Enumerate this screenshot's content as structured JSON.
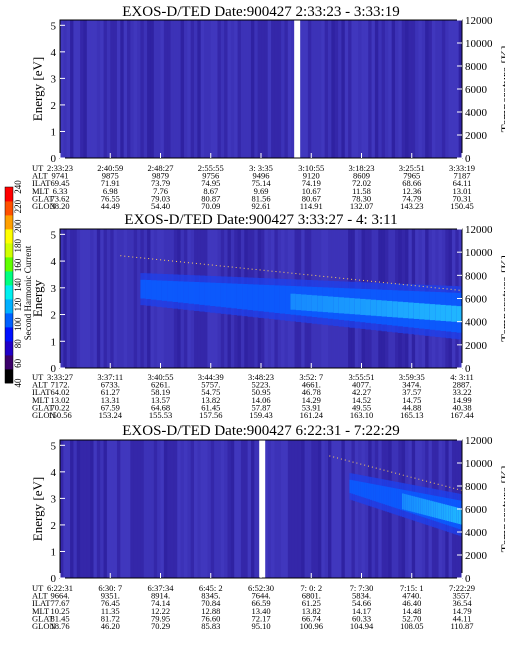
{
  "chart_data": [
    {
      "type": "heatmap",
      "title": "EXOS-D/TED   Date:900427  2:33:23 - 3:33:19",
      "ylabel": "Energy [eV]",
      "y2label": "Temperature [K]",
      "yticks": [
        "0",
        "1",
        "2",
        "3",
        "4",
        "5"
      ],
      "ylim": [
        0,
        5.2
      ],
      "y2ticks": [
        "0",
        "2000",
        "4000",
        "6000",
        "8000",
        "10000",
        "12000"
      ],
      "y2lim": [
        0,
        12000
      ],
      "gap_fraction": 0.59,
      "hot_zone": null,
      "rows": [
        {
          "label": "UT",
          "values": [
            "2:33:23",
            "2:40:59",
            "2:48:27",
            "2:55:55",
            "3: 3:35",
            "3:10:55",
            "3:18:23",
            "3:25:51",
            "3:33:19"
          ]
        },
        {
          "label": "ALT",
          "values": [
            "9741",
            "9875",
            "9879",
            "9756",
            "9496",
            "9120",
            "8609",
            "7965",
            "7187"
          ]
        },
        {
          "label": "ILAT",
          "values": [
            "69.45",
            "71.91",
            "73.79",
            "74.95",
            "75.14",
            "74.19",
            "72.02",
            "68.66",
            "64.11"
          ]
        },
        {
          "label": "MLT",
          "values": [
            "6.33",
            "6.98",
            "7.76",
            "8.67",
            "9.69",
            "10.67",
            "11.58",
            "12.36",
            "13.01"
          ]
        },
        {
          "label": "GLAT",
          "values": [
            "73.62",
            "76.55",
            "79.03",
            "80.87",
            "81.56",
            "80.67",
            "78.30",
            "74.79",
            "70.31"
          ]
        },
        {
          "label": "GLON",
          "values": [
            "38.20",
            "44.49",
            "54.40",
            "70.09",
            "92.61",
            "114.91",
            "132.07",
            "143.23",
            "150.45"
          ]
        }
      ]
    },
    {
      "type": "heatmap",
      "title": "EXOS-D/TED   Date:900427  3:33:27 - 4: 3:11",
      "ylabel": "Energy",
      "y2label": "Temperature [K]",
      "yticks": [
        "0",
        "1",
        "2",
        "3",
        "4",
        "5"
      ],
      "ylim": [
        0,
        5.2
      ],
      "y2ticks": [
        "0",
        "2000",
        "4000",
        "6000",
        "8000",
        "10000",
        "12000"
      ],
      "y2lim": [
        0,
        12000
      ],
      "gap_fraction": null,
      "hot_zone": {
        "x0": 0.2,
        "x1": 1.0,
        "ylow_start": 2.6,
        "ylow_end": 1.3,
        "yhigh_start": 3.3,
        "yhigh_end": 2.8
      },
      "rows": [
        {
          "label": "UT",
          "values": [
            "3:33:27",
            "3:37:11",
            "3:40:55",
            "3:44:39",
            "3:48:23",
            "3:52: 7",
            "3:55:51",
            "3:59:35",
            "4: 3:11"
          ]
        },
        {
          "label": "ALT",
          "values": [
            "7172.",
            "6733.",
            "6261.",
            "5757.",
            "5223.",
            "4661.",
            "4077.",
            "3474.",
            "2887."
          ]
        },
        {
          "label": "ILAT",
          "values": [
            "64.02",
            "61.27",
            "58.19",
            "54.75",
            "50.95",
            "46.78",
            "42.27",
            "37.57",
            "33.22"
          ]
        },
        {
          "label": "MLT",
          "values": [
            "13.02",
            "13.31",
            "13.57",
            "13.82",
            "14.06",
            "14.29",
            "14.52",
            "14.75",
            "14.99"
          ]
        },
        {
          "label": "GLAT",
          "values": [
            "70.22",
            "67.59",
            "64.68",
            "61.45",
            "57.87",
            "53.91",
            "49.55",
            "44.88",
            "40.38"
          ]
        },
        {
          "label": "GLON",
          "values": [
            "150.56",
            "153.24",
            "155.53",
            "157.56",
            "159.43",
            "161.24",
            "163.10",
            "165.13",
            "167.44"
          ]
        }
      ]
    },
    {
      "type": "heatmap",
      "title": "EXOS-D/TED   Date:900427  6:22:31 - 7:22:29",
      "ylabel": "Energy [eV]",
      "y2label": "Temperature [K]",
      "yticks": [
        "0",
        "1",
        "2",
        "3",
        "4",
        "5"
      ],
      "ylim": [
        0,
        5.2
      ],
      "y2ticks": [
        "0",
        "2000",
        "4000",
        "6000",
        "8000",
        "10000",
        "12000"
      ],
      "y2lim": [
        0,
        12000
      ],
      "gap_fraction": 0.503,
      "hot_zone": {
        "x0": 0.72,
        "x1": 1.0,
        "ylow_start": 3.2,
        "ylow_end": 1.8,
        "yhigh_start": 3.7,
        "yhigh_end": 2.9
      },
      "rows": [
        {
          "label": "UT",
          "values": [
            "6:22:31",
            "6:30: 7",
            "6:37:34",
            "6:45: 2",
            "6:52:30",
            "7: 0: 2",
            "7: 7:30",
            "7:15: 1",
            "7:22:29"
          ]
        },
        {
          "label": "ALT",
          "values": [
            "9664.",
            "9351.",
            "8914.",
            "8345.",
            "7644.",
            "6801.",
            "5834.",
            "4740.",
            "3557."
          ]
        },
        {
          "label": "ILAT",
          "values": [
            "77.67",
            "76.45",
            "74.14",
            "70.84",
            "66.59",
            "61.25",
            "54.66",
            "46.40",
            "36.54"
          ]
        },
        {
          "label": "MLT",
          "values": [
            "10.25",
            "11.35",
            "12.22",
            "12.88",
            "13.40",
            "13.82",
            "14.17",
            "14.48",
            "14.79"
          ]
        },
        {
          "label": "GLAT",
          "values": [
            "81.45",
            "81.72",
            "79.95",
            "76.60",
            "72.17",
            "66.74",
            "60.33",
            "52.70",
            "44.11"
          ]
        },
        {
          "label": "GLON",
          "values": [
            "18.76",
            "46.20",
            "70.29",
            "85.83",
            "95.10",
            "100.96",
            "104.94",
            "108.05",
            "110.87"
          ]
        }
      ]
    }
  ],
  "colorbar": {
    "label": "Second Harmonic Current",
    "ticks": [
      "40",
      "60",
      "80",
      "100",
      "120",
      "140",
      "160",
      "180",
      "200",
      "220",
      "240"
    ],
    "colors": [
      "#000000",
      "#3b006a",
      "#2000c8",
      "#0010ff",
      "#0060ff",
      "#00b0ff",
      "#00f0f0",
      "#00ff80",
      "#60ff00",
      "#d0ff00",
      "#ffff00",
      "#ffa000",
      "#ff5000",
      "#ff0000"
    ]
  }
}
